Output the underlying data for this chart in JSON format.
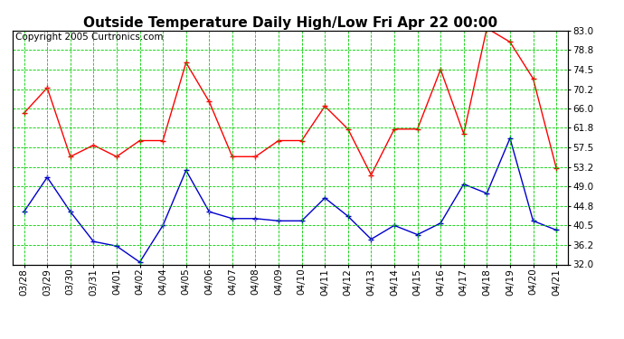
{
  "title": "Outside Temperature Daily High/Low Fri Apr 22 00:00",
  "copyright": "Copyright 2005 Curtronics.com",
  "dates": [
    "03/28",
    "03/29",
    "03/30",
    "03/31",
    "04/01",
    "04/02",
    "04/04",
    "04/05",
    "04/06",
    "04/07",
    "04/08",
    "04/09",
    "04/10",
    "04/11",
    "04/12",
    "04/13",
    "04/14",
    "04/15",
    "04/16",
    "04/17",
    "04/18",
    "04/19",
    "04/20",
    "04/21"
  ],
  "high_temps": [
    65.0,
    70.5,
    55.5,
    58.0,
    55.5,
    59.0,
    59.0,
    76.0,
    67.5,
    55.5,
    55.5,
    59.0,
    59.0,
    66.5,
    61.5,
    51.5,
    61.5,
    61.5,
    74.5,
    60.5,
    83.5,
    80.5,
    72.5,
    53.0
  ],
  "low_temps": [
    43.5,
    51.0,
    43.5,
    37.0,
    36.0,
    32.5,
    40.5,
    52.5,
    43.5,
    42.0,
    42.0,
    41.5,
    41.5,
    46.5,
    42.5,
    37.5,
    40.5,
    38.5,
    41.0,
    49.5,
    47.5,
    59.5,
    41.5,
    39.5
  ],
  "ylim": [
    32.0,
    83.0
  ],
  "yticks": [
    32.0,
    36.2,
    40.5,
    44.8,
    49.0,
    53.2,
    57.5,
    61.8,
    66.0,
    70.2,
    74.5,
    78.8,
    83.0
  ],
  "high_color": "#ff0000",
  "low_color": "#0000cc",
  "grid_color": "#00cc00",
  "bg_color": "#ffffff",
  "title_fontsize": 11,
  "copyright_fontsize": 7.5,
  "tick_fontsize": 7.5
}
